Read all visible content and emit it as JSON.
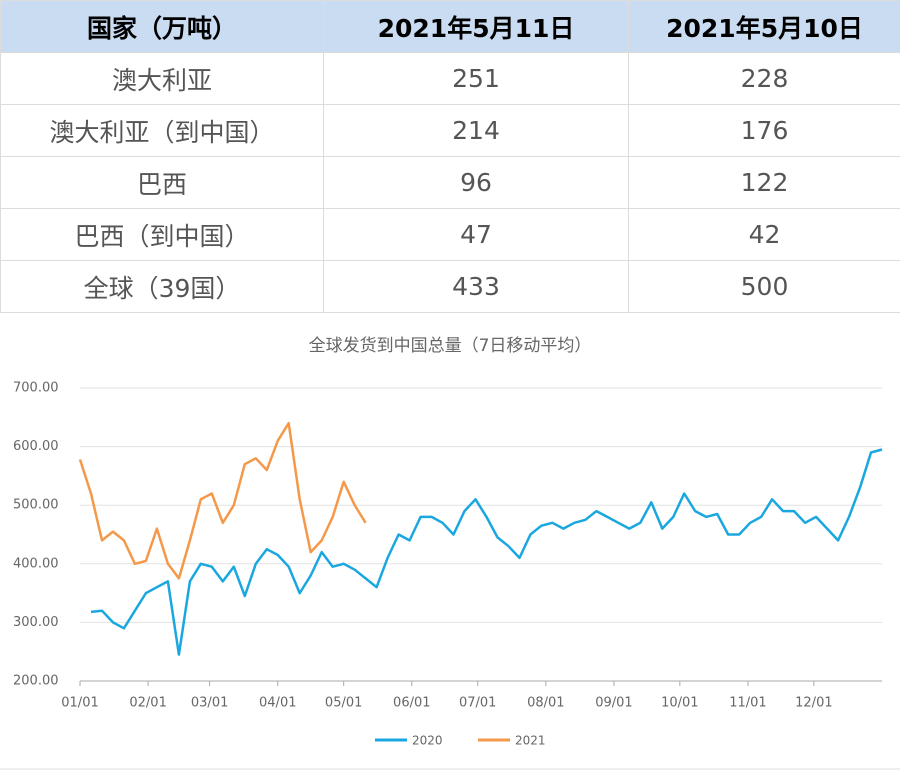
{
  "table": {
    "header": [
      "国家（万吨）",
      "2021年5月11日",
      "2021年5月10日"
    ],
    "rows": [
      [
        "澳大利亚",
        251,
        228
      ],
      [
        "澳大利亚（到中国）",
        214,
        176
      ],
      [
        "巴西",
        96,
        122
      ],
      [
        "巴西（到中国）",
        47,
        42
      ],
      [
        "全球（39国）",
        433,
        500
      ]
    ]
  },
  "chart_data": {
    "type": "line",
    "title": "全球发货到中国总量（7日移动平均）",
    "x": [
      0,
      5,
      10,
      15,
      20,
      25,
      30,
      35,
      40,
      45,
      50,
      55,
      60,
      65,
      70,
      75,
      80,
      85,
      90,
      95,
      100,
      105,
      110,
      115,
      120,
      125,
      130,
      135,
      140,
      145,
      150,
      155,
      160,
      165,
      170,
      175,
      180,
      185,
      190,
      195,
      200,
      205,
      210,
      215,
      220,
      225,
      230,
      235,
      240,
      245,
      250,
      255,
      260,
      265,
      270,
      275,
      280,
      285,
      290,
      295,
      300,
      305,
      310,
      315,
      320,
      325,
      330,
      335,
      340,
      345,
      350,
      355,
      360,
      365
    ],
    "series": [
      {
        "name": "2020",
        "color": "#1aa7e0",
        "values": [
          null,
          318,
          320,
          300,
          290,
          320,
          350,
          360,
          370,
          245,
          370,
          400,
          395,
          370,
          395,
          345,
          400,
          425,
          415,
          395,
          350,
          380,
          420,
          395,
          400,
          390,
          375,
          360,
          410,
          450,
          440,
          480,
          480,
          470,
          450,
          490,
          510,
          480,
          445,
          430,
          410,
          450,
          465,
          470,
          460,
          470,
          475,
          490,
          480,
          470,
          460,
          470,
          505,
          460,
          480,
          520,
          490,
          480,
          485,
          450,
          450,
          470,
          480,
          510,
          490,
          490,
          470,
          480,
          460,
          440,
          480,
          530,
          590,
          595
        ]
      },
      {
        "name": "2021",
        "color": "#f4984a",
        "values": [
          578,
          520,
          440,
          455,
          440,
          400,
          405,
          460,
          400,
          375,
          440,
          510,
          520,
          470,
          500,
          570,
          580,
          560,
          610,
          640,
          510,
          420,
          440,
          480,
          540,
          500,
          470,
          null,
          null,
          null,
          null,
          null,
          null,
          null,
          null,
          null,
          null,
          null,
          null,
          null,
          null,
          null,
          null,
          null,
          null,
          null,
          null,
          null,
          null,
          null,
          null,
          null,
          null,
          null,
          null,
          null,
          null,
          null,
          null,
          null,
          null,
          null,
          null,
          null,
          null,
          null,
          null,
          null,
          null,
          null,
          null,
          null,
          null,
          null
        ]
      }
    ],
    "xlim": [
      0,
      365
    ],
    "xticks": [
      {
        "value": 0,
        "label": "01/01"
      },
      {
        "value": 31,
        "label": "02/01"
      },
      {
        "value": 59,
        "label": "03/01"
      },
      {
        "value": 90,
        "label": "04/01"
      },
      {
        "value": 120,
        "label": "05/01"
      },
      {
        "value": 151,
        "label": "06/01"
      },
      {
        "value": 181,
        "label": "07/01"
      },
      {
        "value": 212,
        "label": "08/01"
      },
      {
        "value": 243,
        "label": "09/01"
      },
      {
        "value": 273,
        "label": "10/01"
      },
      {
        "value": 304,
        "label": "11/01"
      },
      {
        "value": 334,
        "label": "12/01"
      }
    ],
    "ylim": [
      200,
      700
    ],
    "yticks": [
      {
        "value": 200,
        "label": "200.00"
      },
      {
        "value": 300,
        "label": "300.00"
      },
      {
        "value": 400,
        "label": "400.00"
      },
      {
        "value": 500,
        "label": "500.00"
      },
      {
        "value": 600,
        "label": "600.00"
      },
      {
        "value": 700,
        "label": "700.00"
      }
    ],
    "grid": true,
    "legend": "bottom"
  }
}
